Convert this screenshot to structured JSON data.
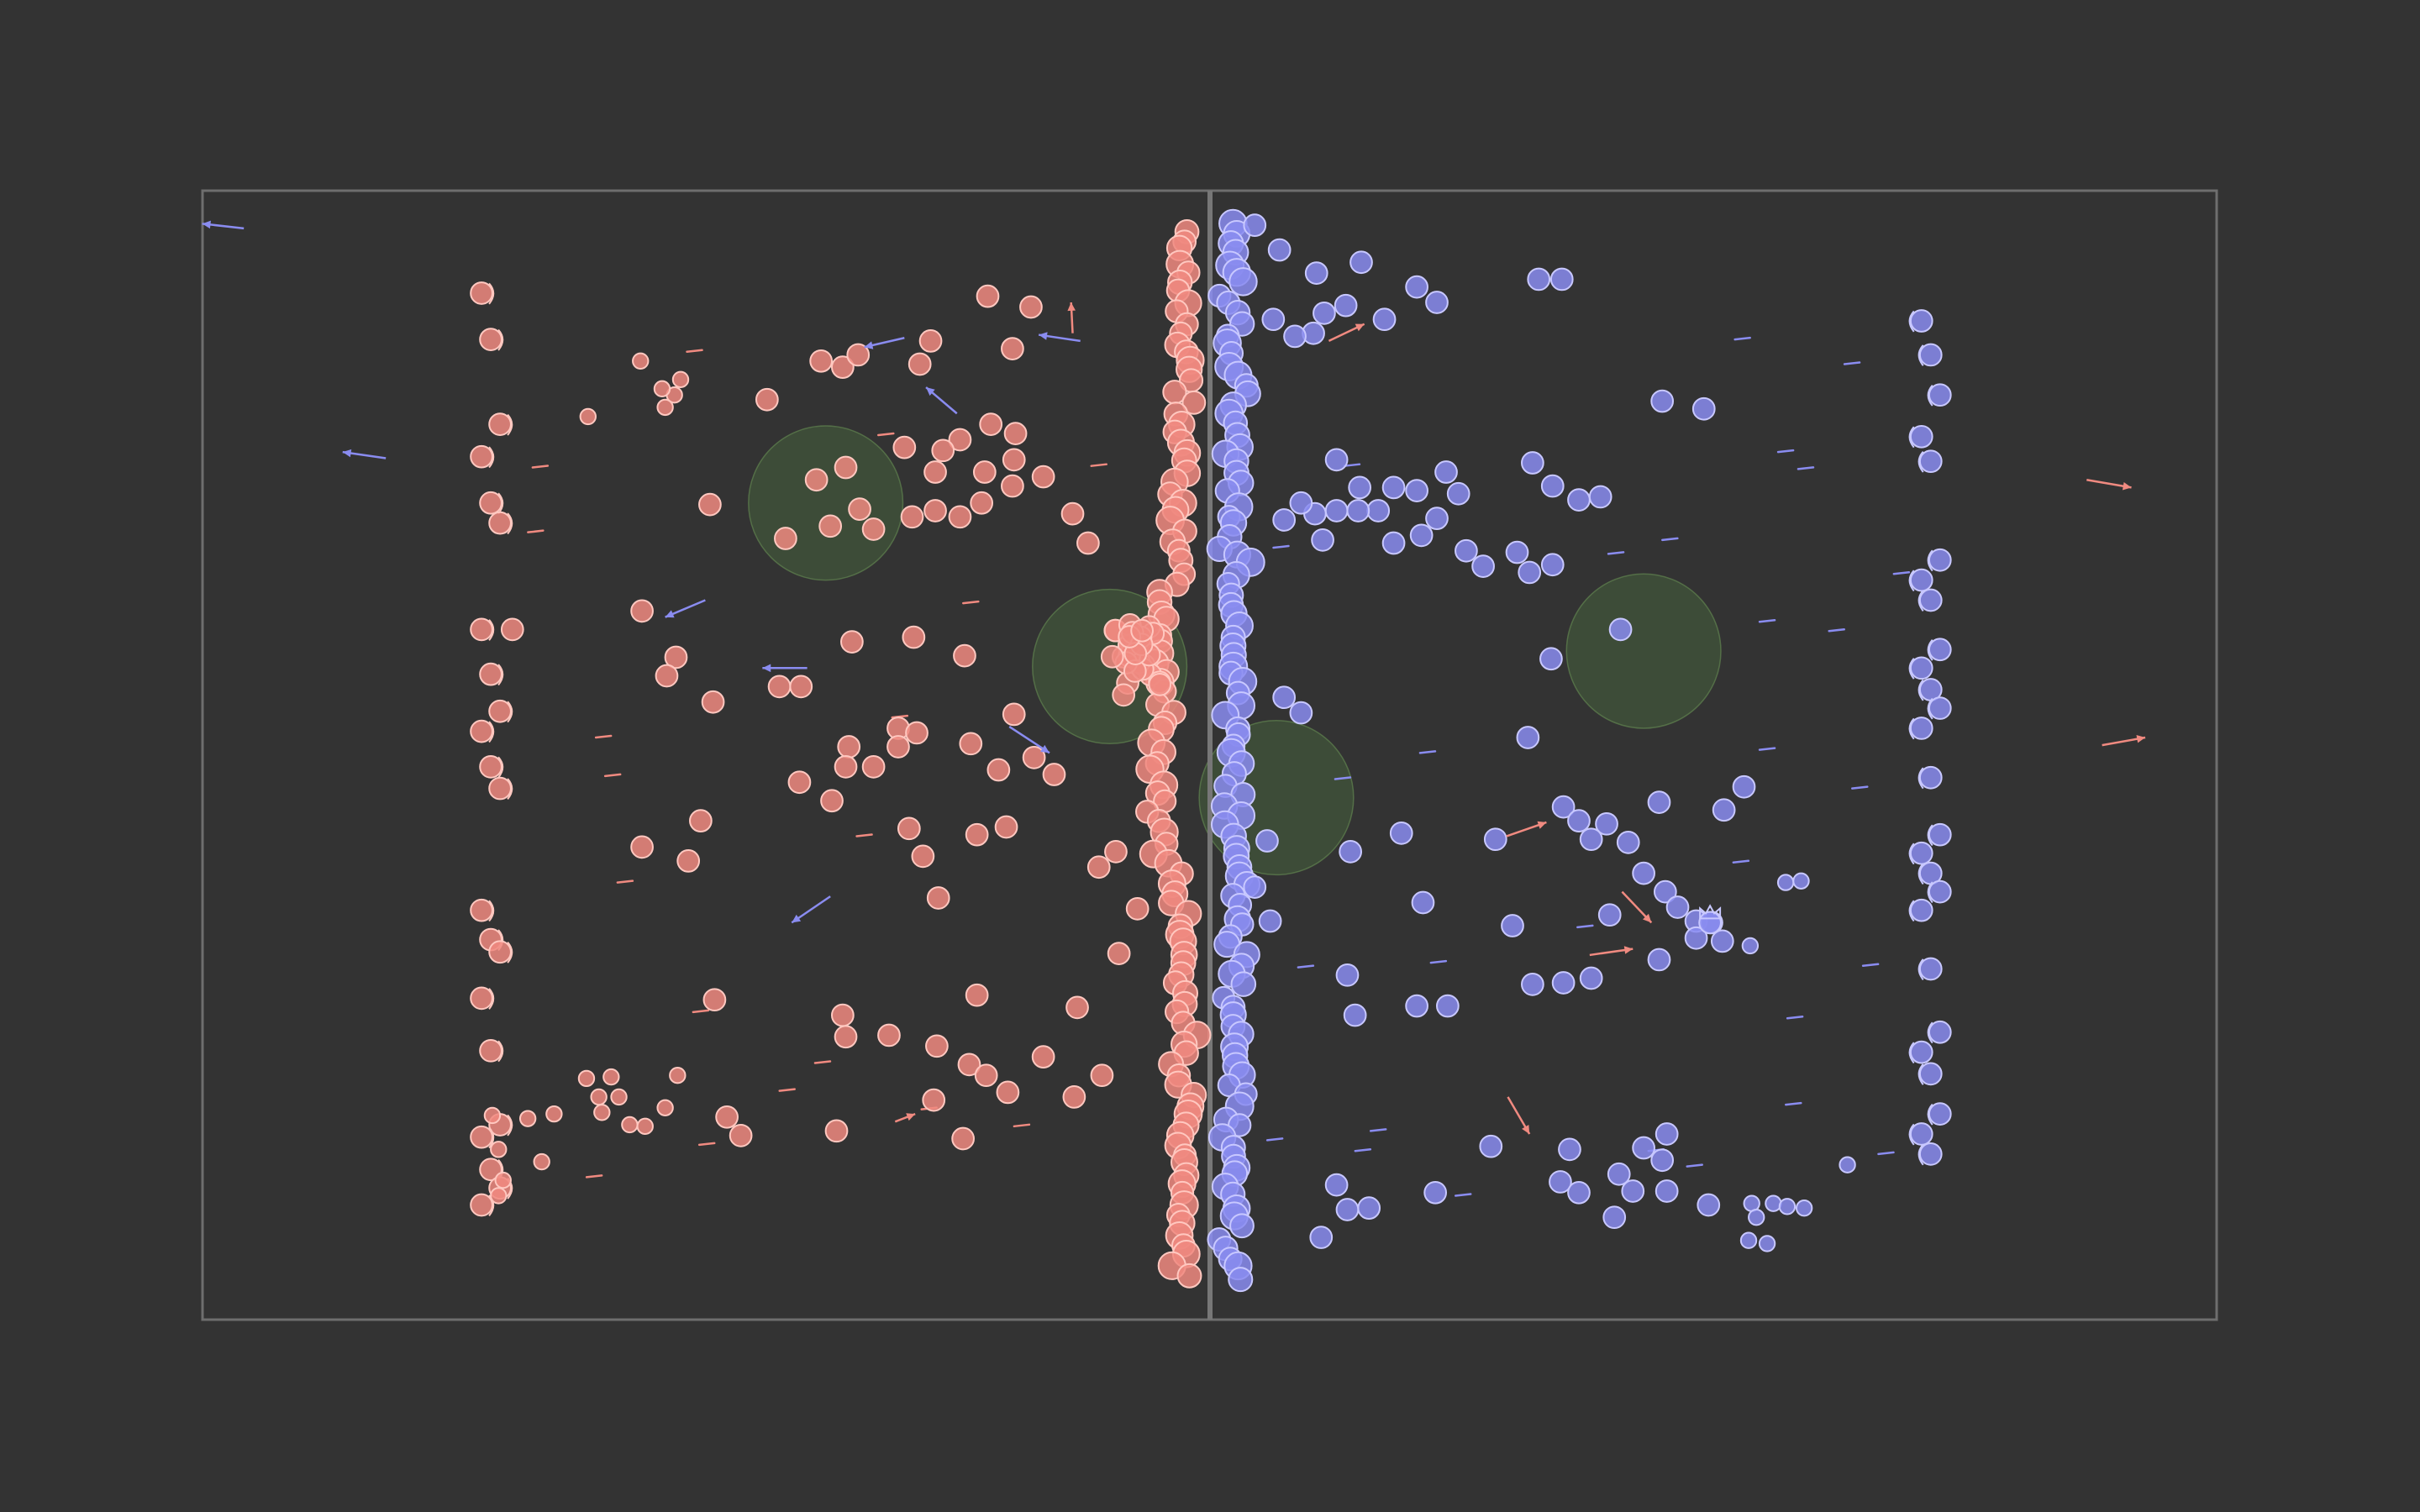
{
  "game": {
    "colors": {
      "background": "#333333",
      "field_border": "#6e6e6e",
      "center_line": "#777777",
      "team_red": "#f08a80",
      "team_red_stroke": "#ffc8c0",
      "team_blue": "#8a8cf0",
      "team_blue_stroke": "#c8c8ff",
      "zone_fill": "#4a6a3e",
      "zone_stroke": "#5b7a4c"
    },
    "teams": [
      {
        "name": "",
        "color_key": "team_red"
      },
      {
        "name": "",
        "color_key": "team_blue"
      }
    ],
    "zones_count": 4,
    "icons": [
      "player-token",
      "velocity-arrow",
      "crown-icon"
    ]
  }
}
